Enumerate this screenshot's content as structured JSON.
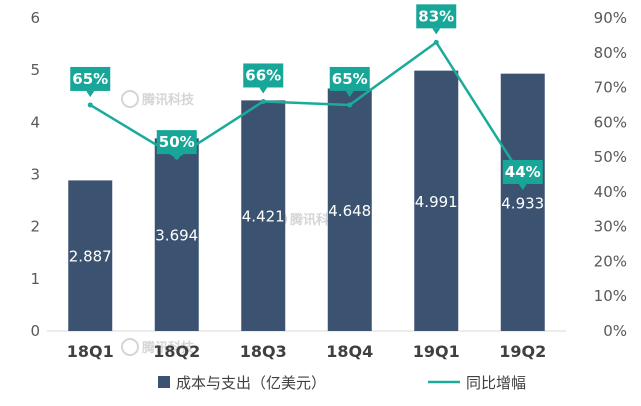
{
  "chart_data": {
    "type": "bar",
    "categories": [
      "18Q1",
      "18Q2",
      "18Q3",
      "18Q4",
      "19Q1",
      "19Q2"
    ],
    "series": [
      {
        "name": "成本与支出（亿美元）",
        "kind": "bar",
        "axis": "left",
        "values": [
          2.887,
          3.694,
          4.421,
          4.648,
          4.991,
          4.933
        ],
        "labels": [
          "2.887",
          "3.694",
          "4.421",
          "4.648",
          "4.991",
          "4.933"
        ]
      },
      {
        "name": "同比增幅",
        "kind": "line",
        "axis": "right",
        "values": [
          65,
          50,
          66,
          65,
          83,
          44
        ],
        "labels": [
          "65%",
          "50%",
          "66%",
          "65%",
          "83%",
          "44%"
        ]
      }
    ],
    "ylim_left": [
      0,
      6
    ],
    "yticks_left": [
      "0",
      "1",
      "2",
      "3",
      "4",
      "5",
      "6"
    ],
    "ylim_right": [
      0,
      90
    ],
    "yticks_right": [
      "0%",
      "10%",
      "20%",
      "30%",
      "40%",
      "50%",
      "60%",
      "70%",
      "80%",
      "90%"
    ],
    "grid": false,
    "legend_position": "bottom",
    "colors": {
      "bar": "#3b5270",
      "line": "#1aab9b",
      "callout": "#17a697"
    }
  },
  "watermark": "腾讯科技"
}
